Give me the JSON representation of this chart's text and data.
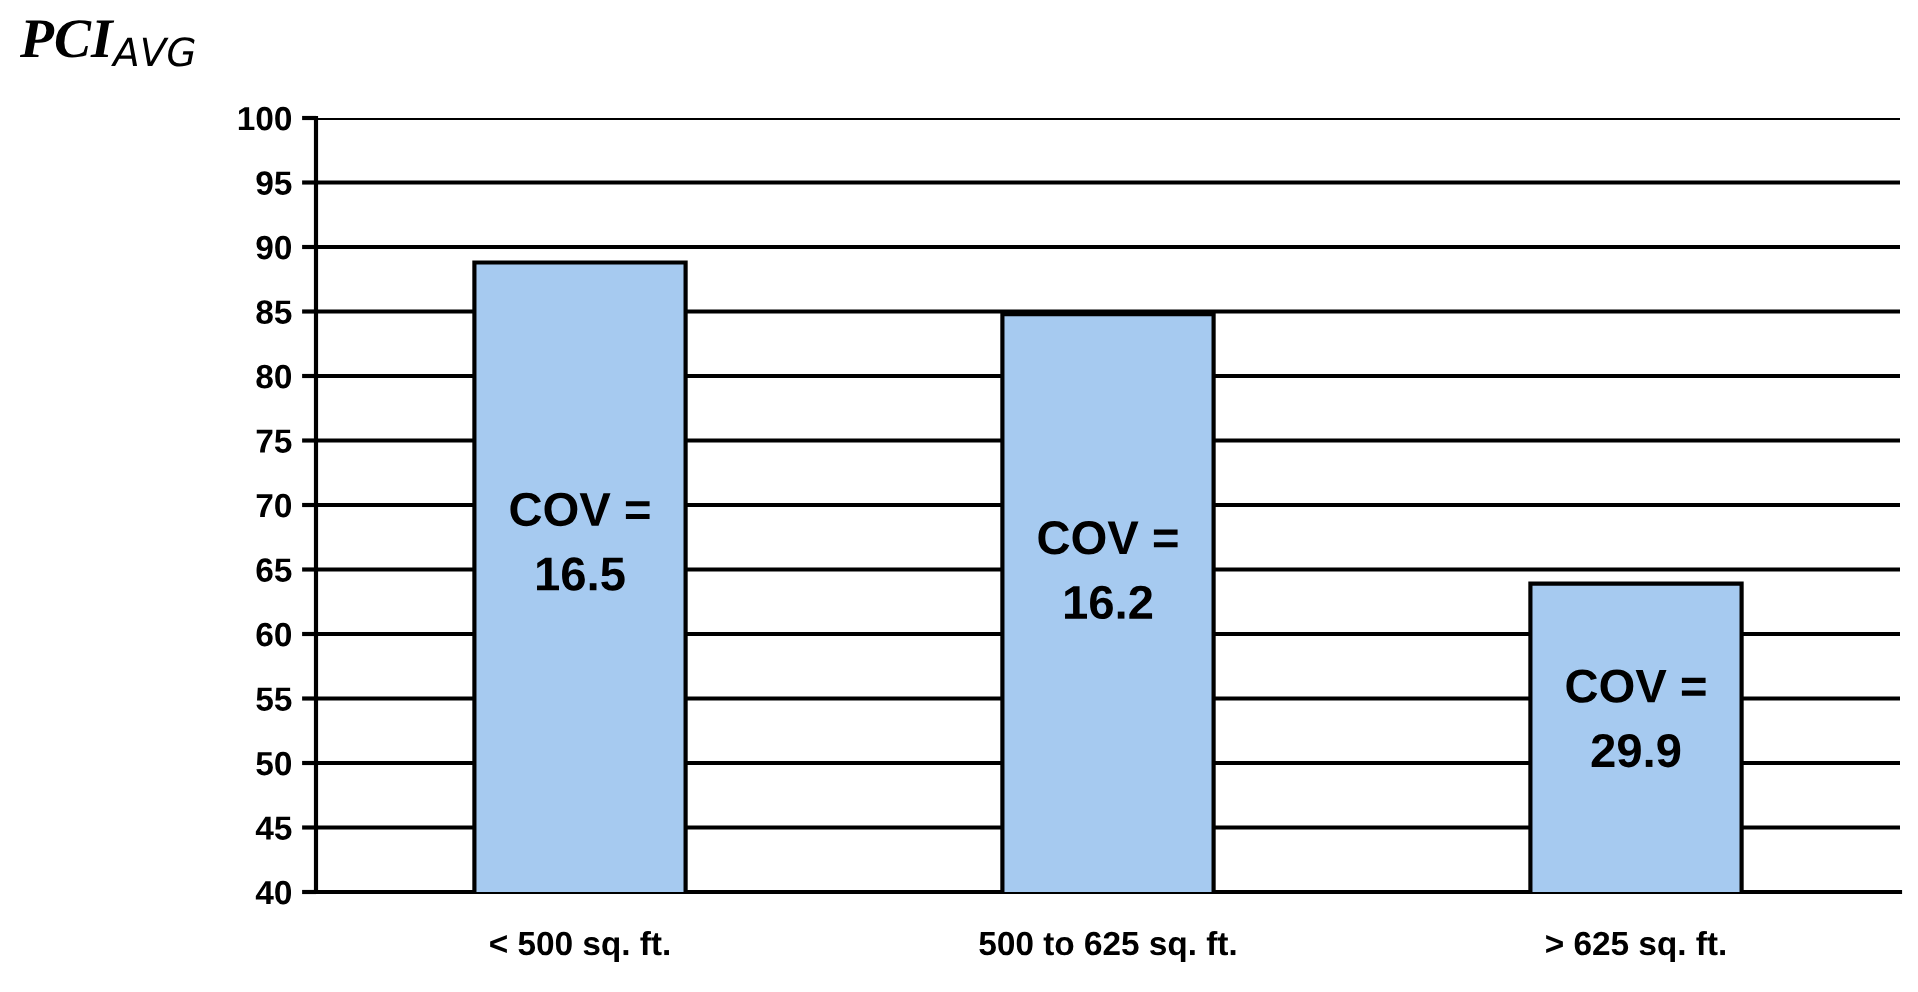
{
  "chart_data": {
    "type": "bar",
    "title": "PCI$_{AVG}$",
    "categories": [
      "< 500 sq. ft.",
      "500 to 625 sq. ft.",
      "> 625 sq. ft."
    ],
    "values": [
      88.8,
      84.8,
      63.9
    ],
    "color": "#a6caf0",
    "ylim": [
      40,
      100
    ],
    "yticks": [
      40,
      45,
      50,
      55,
      60,
      65,
      70,
      75,
      80,
      85,
      90,
      95,
      100
    ],
    "grid": "y",
    "annotations": [
      "COV =\n16.5",
      "COV =\n16.2",
      "COV =\n29.9"
    ]
  }
}
